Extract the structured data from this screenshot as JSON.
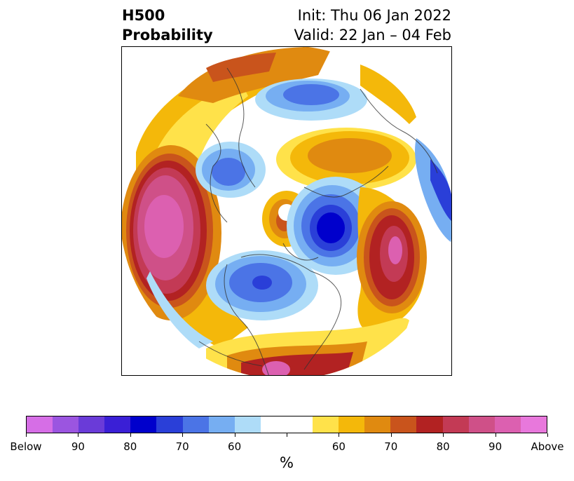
{
  "title": {
    "left_line1": "H500",
    "left_line2": "Probability",
    "right_line1": "Init: Thu 06 Jan 2022",
    "right_line2": "Valid: 22 Jan – 04 Feb"
  },
  "colorbar": {
    "unit": "%",
    "colors": [
      "#d66ee6",
      "#9b55e0",
      "#6a3bd8",
      "#3a1fd6",
      "#0000cc",
      "#2a3fd8",
      "#4b74e6",
      "#76aef2",
      "#aedcf8",
      "#ffffff",
      "#ffffff",
      "#ffe24a",
      "#f4b80a",
      "#e08a10",
      "#c9541c",
      "#b22222",
      "#c33a55",
      "#cf5088",
      "#dc60b0",
      "#e878dc"
    ],
    "tick_labels": [
      "Below",
      "90",
      "80",
      "70",
      "60",
      "",
      "60",
      "70",
      "80",
      "90",
      "Above"
    ]
  }
}
